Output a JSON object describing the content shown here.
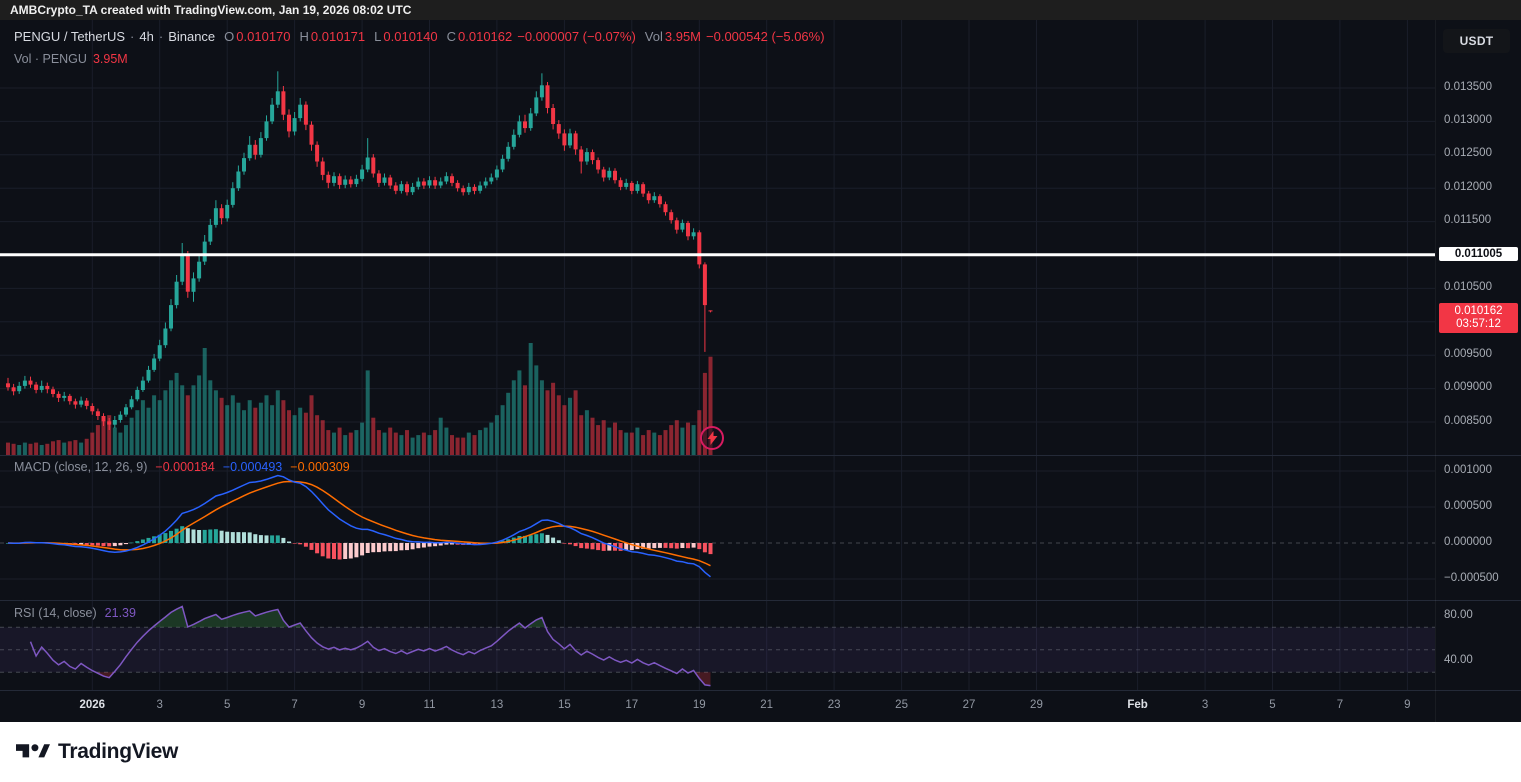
{
  "topbar": {
    "text": "AMBCrypto_TA created with TradingView.com, Jan 19, 2026 08:02 UTC"
  },
  "currency_button": "USDT",
  "legend": {
    "symbol": "PENGU / TetherUS",
    "sep": "·",
    "interval": "4h",
    "exchange": "Binance",
    "o_label": "O",
    "o_value": "0.010170",
    "h_label": "H",
    "h_value": "0.010171",
    "l_label": "L",
    "l_value": "0.010140",
    "c_label": "C",
    "c_value": "0.010162",
    "change": "−0.000007 (−0.07%)",
    "vol_label": "Vol",
    "vol_value": "3.95M",
    "change2": "−0.000542 (−5.06%)"
  },
  "volume_legend": {
    "title": "Vol · PENGU",
    "value": "3.95M"
  },
  "macd_legend": {
    "title": "MACD (close, 12, 26, 9)",
    "hist": "−0.000184",
    "macd": "−0.000493",
    "signal": "−0.000309"
  },
  "rsi_legend": {
    "title": "RSI (14, close)",
    "value": "21.39"
  },
  "footer": {
    "brand": "TradingView"
  },
  "icons": {
    "lightning_badge": "lightning-bolt",
    "tradingview_logo": "tradingview-mark"
  },
  "chart_data": {
    "type": "candlestick",
    "symbol": "PENGU/USDT",
    "interval": "4h",
    "exchange": "Binance",
    "macd_params": [
      12,
      26,
      9
    ],
    "rsi_period": 14,
    "colors": {
      "background": "#0d1017",
      "grid": "#1a1e2a",
      "dashed": "rgba(120,123,134,0.5)",
      "up": "#26a69a",
      "down": "#f23645",
      "volume_up": "rgba(38,166,154,0.55)",
      "volume_down": "rgba(242,54,69,0.55)",
      "macd_line": "#2962ff",
      "signal_line": "#ff6d00",
      "hist_pos_strong": "#26a69a",
      "hist_pos_weak": "#b2dfdb",
      "hist_neg_strong": "#f7525f",
      "hist_neg_weak": "#fccbcd",
      "rsi_line": "#7e57c2",
      "rsi_band": "rgba(126,87,194,0.10)",
      "overbought_fill": "rgba(76,175,80,0.25)",
      "oversold_fill": "rgba(242,54,69,0.25)",
      "marked_line": "#ffffff",
      "last_label_bg": "#f23645",
      "axis_text": "#a8adb5"
    },
    "price_scale": {
      "range": {
        "top": 0.01437,
        "bottom": 0.00799
      },
      "ticks": [
        {
          "v": 0.0135,
          "label": "0.013500"
        },
        {
          "v": 0.013,
          "label": "0.013000"
        },
        {
          "v": 0.0125,
          "label": "0.012500"
        },
        {
          "v": 0.012,
          "label": "0.012000"
        },
        {
          "v": 0.0115,
          "label": "0.011500"
        },
        {
          "v": 0.0105,
          "label": "0.010500"
        },
        {
          "v": 0.0095,
          "label": "0.009500"
        },
        {
          "v": 0.009,
          "label": "0.009000"
        },
        {
          "v": 0.0085,
          "label": "0.008500"
        }
      ],
      "grid": [
        0.0135,
        0.013,
        0.0125,
        0.012,
        0.0115,
        0.011,
        0.0105,
        0.01,
        0.0095,
        0.009,
        0.0085
      ],
      "marked_line": {
        "value": 0.011005,
        "label": "0.011005"
      },
      "last": {
        "value": 0.010162,
        "label": "0.010162",
        "countdown": "03:57:12",
        "direction": "down"
      }
    },
    "volume_scale": {
      "max_m": 4.5
    },
    "macd_scale": {
      "range": [
        -0.00065,
        0.00122
      ],
      "ticks": [
        {
          "v": 0.001,
          "label": "0.001000"
        },
        {
          "v": 0.0005,
          "label": "0.000500"
        },
        {
          "v": 0,
          "label": "0.000000"
        },
        {
          "v": -0.0005,
          "label": "−0.000500"
        }
      ],
      "last": {
        "hist": -0.000184,
        "macd": -0.000493,
        "signal": -0.000309
      }
    },
    "rsi_scale": {
      "range": [
        14,
        92
      ],
      "bands": [
        70,
        50,
        30
      ],
      "ticks": [
        {
          "v": 80,
          "label": "80.00"
        },
        {
          "v": 40,
          "label": "40.00"
        }
      ],
      "last": 21.39
    },
    "time_axis": [
      {
        "label": "2026",
        "i": 15,
        "major": true
      },
      {
        "label": "3",
        "i": 27
      },
      {
        "label": "5",
        "i": 39
      },
      {
        "label": "7",
        "i": 51
      },
      {
        "label": "9",
        "i": 63
      },
      {
        "label": "11",
        "i": 75
      },
      {
        "label": "13",
        "i": 87
      },
      {
        "label": "15",
        "i": 99
      },
      {
        "label": "17",
        "i": 111
      },
      {
        "label": "19",
        "i": 123
      },
      {
        "label": "21",
        "i": 135
      },
      {
        "label": "23",
        "i": 147
      },
      {
        "label": "25",
        "i": 159
      },
      {
        "label": "27",
        "i": 171
      },
      {
        "label": "29",
        "i": 183
      },
      {
        "label": "Feb",
        "i": 201,
        "major": true
      },
      {
        "label": "3",
        "i": 213
      },
      {
        "label": "5",
        "i": 225
      },
      {
        "label": "7",
        "i": 237
      },
      {
        "label": "9",
        "i": 249
      }
    ],
    "candles": [
      [
        0.00908,
        0.00916,
        0.00897,
        0.00902,
        0.5
      ],
      [
        0.00902,
        0.00907,
        0.0089,
        0.00896,
        0.45
      ],
      [
        0.00896,
        0.0091,
        0.00892,
        0.00904,
        0.4
      ],
      [
        0.00904,
        0.00919,
        0.009,
        0.00912,
        0.5
      ],
      [
        0.00912,
        0.00918,
        0.00901,
        0.00906,
        0.45
      ],
      [
        0.00906,
        0.0091,
        0.00893,
        0.00898,
        0.5
      ],
      [
        0.00898,
        0.00912,
        0.00894,
        0.00904,
        0.4
      ],
      [
        0.00904,
        0.00909,
        0.00893,
        0.00899,
        0.45
      ],
      [
        0.00899,
        0.00903,
        0.00887,
        0.00892,
        0.55
      ],
      [
        0.00892,
        0.00896,
        0.0088,
        0.00886,
        0.6
      ],
      [
        0.00886,
        0.00895,
        0.00881,
        0.00889,
        0.5
      ],
      [
        0.00889,
        0.00892,
        0.00876,
        0.00881,
        0.55
      ],
      [
        0.00881,
        0.00885,
        0.0087,
        0.00876,
        0.6
      ],
      [
        0.00876,
        0.00888,
        0.00872,
        0.00882,
        0.5
      ],
      [
        0.00882,
        0.00886,
        0.00869,
        0.00874,
        0.65
      ],
      [
        0.00874,
        0.00878,
        0.00861,
        0.00866,
        0.9
      ],
      [
        0.00866,
        0.0087,
        0.00853,
        0.00859,
        1.2
      ],
      [
        0.00859,
        0.00863,
        0.00844,
        0.00851,
        1.5
      ],
      [
        0.00851,
        0.00856,
        0.00838,
        0.00846,
        1.6
      ],
      [
        0.00846,
        0.00859,
        0.00841,
        0.00853,
        1.1
      ],
      [
        0.00853,
        0.00866,
        0.00849,
        0.00861,
        0.9
      ],
      [
        0.00861,
        0.00877,
        0.00858,
        0.00872,
        1.2
      ],
      [
        0.00872,
        0.00889,
        0.00869,
        0.00884,
        1.5
      ],
      [
        0.00884,
        0.00903,
        0.00881,
        0.00898,
        1.8
      ],
      [
        0.00898,
        0.00918,
        0.00895,
        0.00912,
        2.2
      ],
      [
        0.00912,
        0.00934,
        0.00909,
        0.00928,
        1.9
      ],
      [
        0.00928,
        0.00952,
        0.00925,
        0.00945,
        2.4
      ],
      [
        0.00945,
        0.00973,
        0.00941,
        0.00965,
        2.2
      ],
      [
        0.00965,
        0.00999,
        0.00961,
        0.0099,
        2.6
      ],
      [
        0.0099,
        0.01034,
        0.00986,
        0.01025,
        3.0
      ],
      [
        0.01025,
        0.0107,
        0.0102,
        0.0106,
        3.3
      ],
      [
        0.0106,
        0.01118,
        0.01055,
        0.011,
        2.8
      ],
      [
        0.011,
        0.01106,
        0.01036,
        0.01045,
        2.4
      ],
      [
        0.01045,
        0.01074,
        0.0103,
        0.01065,
        2.8
      ],
      [
        0.01065,
        0.01099,
        0.0106,
        0.0109,
        3.2
      ],
      [
        0.0109,
        0.0113,
        0.01085,
        0.0112,
        4.3
      ],
      [
        0.0112,
        0.01154,
        0.01115,
        0.01145,
        3.0
      ],
      [
        0.01145,
        0.01182,
        0.01141,
        0.0117,
        2.6
      ],
      [
        0.0117,
        0.01176,
        0.01146,
        0.01155,
        2.3
      ],
      [
        0.01155,
        0.01183,
        0.0115,
        0.01175,
        2.0
      ],
      [
        0.01175,
        0.01209,
        0.01171,
        0.012,
        2.4
      ],
      [
        0.012,
        0.01234,
        0.01196,
        0.01225,
        2.1
      ],
      [
        0.01225,
        0.01253,
        0.0122,
        0.01245,
        1.8
      ],
      [
        0.01245,
        0.01278,
        0.01241,
        0.01265,
        2.2
      ],
      [
        0.01265,
        0.01272,
        0.01243,
        0.0125,
        1.9
      ],
      [
        0.0125,
        0.01284,
        0.01246,
        0.01275,
        2.1
      ],
      [
        0.01275,
        0.01309,
        0.01271,
        0.013,
        2.4
      ],
      [
        0.013,
        0.01335,
        0.01296,
        0.01325,
        2.0
      ],
      [
        0.01325,
        0.01375,
        0.0132,
        0.01345,
        2.6
      ],
      [
        0.01345,
        0.01353,
        0.01302,
        0.0131,
        2.2
      ],
      [
        0.0131,
        0.01318,
        0.01276,
        0.01285,
        1.8
      ],
      [
        0.01285,
        0.01314,
        0.01279,
        0.01305,
        1.6
      ],
      [
        0.01305,
        0.01335,
        0.013,
        0.01325,
        1.9
      ],
      [
        0.01325,
        0.0133,
        0.01287,
        0.01295,
        1.7
      ],
      [
        0.01295,
        0.013,
        0.01256,
        0.01265,
        2.4
      ],
      [
        0.01265,
        0.0127,
        0.01232,
        0.0124,
        1.6
      ],
      [
        0.0124,
        0.01246,
        0.01212,
        0.0122,
        1.4
      ],
      [
        0.0122,
        0.01225,
        0.012,
        0.01208,
        1.0
      ],
      [
        0.01208,
        0.01224,
        0.01203,
        0.01218,
        0.9
      ],
      [
        0.01218,
        0.01222,
        0.01199,
        0.01205,
        1.1
      ],
      [
        0.01205,
        0.01219,
        0.012,
        0.01213,
        0.8
      ],
      [
        0.01213,
        0.01218,
        0.01201,
        0.01206,
        0.9
      ],
      [
        0.01206,
        0.0122,
        0.01202,
        0.01214,
        1.0
      ],
      [
        0.01214,
        0.01235,
        0.0121,
        0.01228,
        1.3
      ],
      [
        0.01228,
        0.01275,
        0.01224,
        0.01246,
        3.4
      ],
      [
        0.01246,
        0.01251,
        0.01216,
        0.01222,
        1.5
      ],
      [
        0.01222,
        0.01227,
        0.01202,
        0.01208,
        1.0
      ],
      [
        0.01208,
        0.01222,
        0.01204,
        0.01216,
        0.9
      ],
      [
        0.01216,
        0.0122,
        0.01199,
        0.01204,
        1.1
      ],
      [
        0.01204,
        0.01209,
        0.01191,
        0.01196,
        0.9
      ],
      [
        0.01196,
        0.01211,
        0.01192,
        0.01206,
        0.8
      ],
      [
        0.01206,
        0.0121,
        0.01189,
        0.01194,
        1.0
      ],
      [
        0.01194,
        0.01208,
        0.0119,
        0.01202,
        0.7
      ],
      [
        0.01202,
        0.01216,
        0.01198,
        0.0121,
        0.8
      ],
      [
        0.0121,
        0.01215,
        0.01199,
        0.01204,
        0.9
      ],
      [
        0.01204,
        0.01218,
        0.012,
        0.01212,
        0.8
      ],
      [
        0.01212,
        0.01217,
        0.01199,
        0.01204,
        1.0
      ],
      [
        0.01204,
        0.01216,
        0.012,
        0.0121,
        1.5
      ],
      [
        0.0121,
        0.01224,
        0.01206,
        0.01218,
        1.1
      ],
      [
        0.01218,
        0.01222,
        0.01203,
        0.01208,
        0.8
      ],
      [
        0.01208,
        0.01212,
        0.01195,
        0.012,
        0.7
      ],
      [
        0.012,
        0.01204,
        0.01189,
        0.01194,
        0.7
      ],
      [
        0.01194,
        0.01208,
        0.0119,
        0.01202,
        0.9
      ],
      [
        0.01202,
        0.01206,
        0.01191,
        0.01196,
        0.8
      ],
      [
        0.01196,
        0.0121,
        0.01192,
        0.01204,
        1.0
      ],
      [
        0.01204,
        0.01216,
        0.012,
        0.0121,
        1.1
      ],
      [
        0.0121,
        0.01222,
        0.01206,
        0.01216,
        1.3
      ],
      [
        0.01216,
        0.01234,
        0.01212,
        0.01228,
        1.6
      ],
      [
        0.01228,
        0.0125,
        0.01224,
        0.01244,
        2.0
      ],
      [
        0.01244,
        0.01269,
        0.0124,
        0.01262,
        2.5
      ],
      [
        0.01262,
        0.01288,
        0.01258,
        0.0128,
        3.0
      ],
      [
        0.0128,
        0.01309,
        0.01276,
        0.013,
        3.4
      ],
      [
        0.013,
        0.0131,
        0.01283,
        0.0129,
        2.8
      ],
      [
        0.0129,
        0.0132,
        0.01286,
        0.01312,
        4.5
      ],
      [
        0.01312,
        0.01345,
        0.01308,
        0.01336,
        3.6
      ],
      [
        0.01336,
        0.01372,
        0.01331,
        0.01354,
        3.0
      ],
      [
        0.01354,
        0.01359,
        0.01312,
        0.0132,
        2.6
      ],
      [
        0.0132,
        0.01326,
        0.01288,
        0.01296,
        2.9
      ],
      [
        0.01296,
        0.01302,
        0.01274,
        0.01282,
        2.4
      ],
      [
        0.01282,
        0.01288,
        0.01256,
        0.01264,
        2.0
      ],
      [
        0.01264,
        0.01289,
        0.0126,
        0.01282,
        2.3
      ],
      [
        0.01282,
        0.01286,
        0.0125,
        0.01258,
        2.6
      ],
      [
        0.01258,
        0.01263,
        0.01222,
        0.0124,
        1.6
      ],
      [
        0.0124,
        0.0126,
        0.01235,
        0.01254,
        1.8
      ],
      [
        0.01254,
        0.01258,
        0.01236,
        0.01242,
        1.5
      ],
      [
        0.01242,
        0.01246,
        0.01222,
        0.01228,
        1.2
      ],
      [
        0.01228,
        0.01232,
        0.0121,
        0.01216,
        1.4
      ],
      [
        0.01216,
        0.01231,
        0.01212,
        0.01226,
        1.1
      ],
      [
        0.01226,
        0.0123,
        0.01207,
        0.01212,
        1.3
      ],
      [
        0.01212,
        0.01216,
        0.01197,
        0.01202,
        1.0
      ],
      [
        0.01202,
        0.01214,
        0.01198,
        0.01208,
        0.9
      ],
      [
        0.01208,
        0.01211,
        0.01191,
        0.01196,
        0.9
      ],
      [
        0.01196,
        0.01211,
        0.01192,
        0.01206,
        1.1
      ],
      [
        0.01206,
        0.01209,
        0.01187,
        0.01192,
        0.8
      ],
      [
        0.01192,
        0.01196,
        0.01177,
        0.01182,
        1.0
      ],
      [
        0.01182,
        0.01194,
        0.01178,
        0.01188,
        0.9
      ],
      [
        0.01188,
        0.01191,
        0.01171,
        0.01176,
        0.8
      ],
      [
        0.01176,
        0.0118,
        0.01159,
        0.01164,
        1.0
      ],
      [
        0.01164,
        0.01168,
        0.01147,
        0.01152,
        1.2
      ],
      [
        0.01152,
        0.01156,
        0.01132,
        0.01138,
        1.4
      ],
      [
        0.01138,
        0.01153,
        0.01134,
        0.01148,
        1.1
      ],
      [
        0.01148,
        0.01151,
        0.01122,
        0.01128,
        1.3
      ],
      [
        0.01128,
        0.0114,
        0.01123,
        0.01134,
        1.2
      ],
      [
        0.01134,
        0.01137,
        0.0108,
        0.01086,
        1.8
      ],
      [
        0.01086,
        0.01089,
        0.00955,
        0.01025,
        3.3
      ],
      [
        0.01017,
        0.010171,
        0.01014,
        0.010162,
        3.95
      ]
    ]
  }
}
